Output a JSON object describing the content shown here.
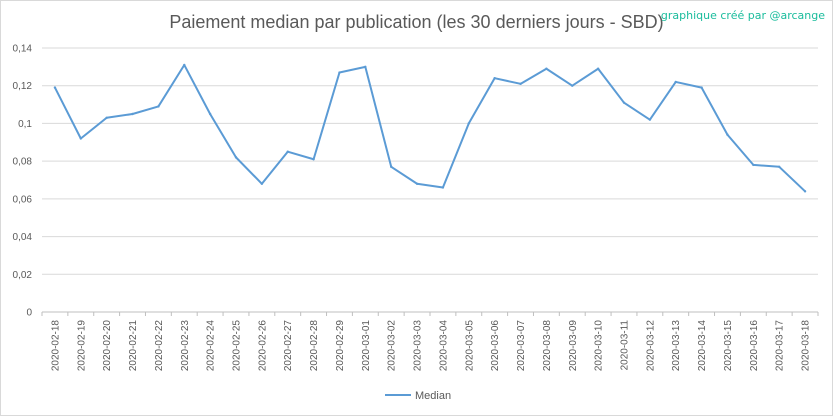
{
  "chart_data": {
    "type": "line",
    "title": "Paiement median par publication (les 30 derniers jours - SBD)",
    "credit": "graphique créé par @arcange",
    "categories": [
      "2020-02-18",
      "2020-02-19",
      "2020-02-20",
      "2020-02-21",
      "2020-02-22",
      "2020-02-23",
      "2020-02-24",
      "2020-02-25",
      "2020-02-26",
      "2020-02-27",
      "2020-02-28",
      "2020-02-29",
      "2020-03-01",
      "2020-03-02",
      "2020-03-03",
      "2020-03-04",
      "2020-03-05",
      "2020-03-06",
      "2020-03-07",
      "2020-03-08",
      "2020-03-09",
      "2020-03-10",
      "2020-03-11",
      "2020-03-12",
      "2020-03-13",
      "2020-03-14",
      "2020-03-15",
      "2020-03-16",
      "2020-03-17",
      "2020-03-18"
    ],
    "series": [
      {
        "name": "Median",
        "color": "#5b9bd5",
        "values": [
          0.119,
          0.092,
          0.103,
          0.105,
          0.109,
          0.131,
          0.105,
          0.082,
          0.068,
          0.085,
          0.081,
          0.127,
          0.13,
          0.077,
          0.068,
          0.066,
          0.1,
          0.124,
          0.121,
          0.129,
          0.12,
          0.129,
          0.111,
          0.102,
          0.122,
          0.119,
          0.094,
          0.078,
          0.077,
          0.064
        ]
      }
    ],
    "ylim": [
      0,
      0.14
    ],
    "yticks": [
      "0",
      "0,02",
      "0,04",
      "0,06",
      "0,08",
      "0,1",
      "0,12",
      "0,14"
    ],
    "grid": true,
    "legend": "bottom",
    "xlabel": "",
    "ylabel": ""
  }
}
